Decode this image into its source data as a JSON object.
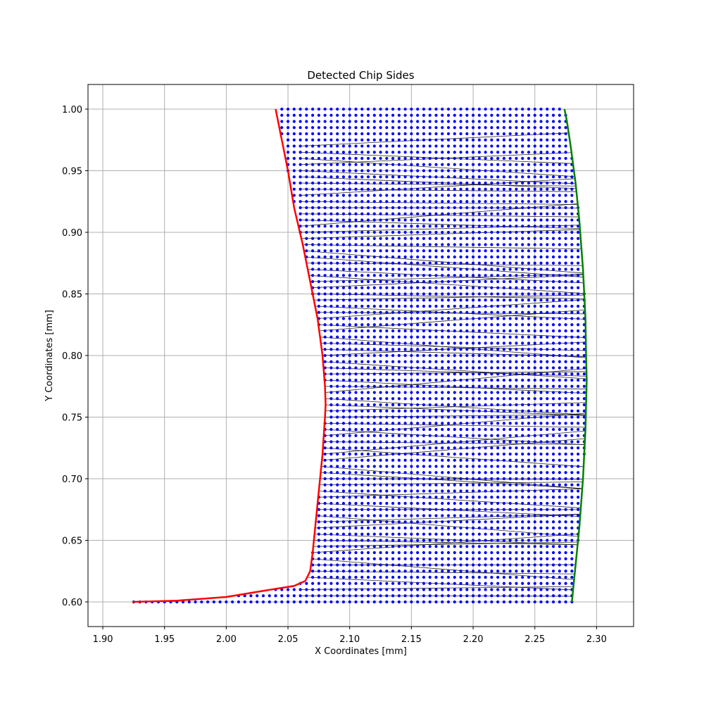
{
  "chart_data": {
    "type": "scatter",
    "title": "Detected Chip Sides",
    "xlabel": "X Coordinates [mm]",
    "ylabel": "Y Coordinates [mm]",
    "xlim": [
      1.888,
      2.33
    ],
    "ylim": [
      0.58,
      1.02
    ],
    "x_ticks": [
      "1.90",
      "1.95",
      "2.00",
      "2.05",
      "2.10",
      "2.15",
      "2.20",
      "2.25",
      "2.30"
    ],
    "y_ticks": [
      "0.60",
      "0.65",
      "0.70",
      "0.75",
      "0.80",
      "0.85",
      "0.90",
      "0.95",
      "1.00"
    ],
    "grid": true,
    "grid_step": {
      "x": 0.005,
      "y": 0.005
    },
    "colors": {
      "grid_points": "#0000ff",
      "left_side": "#ff0000",
      "right_side": "#008000",
      "connectors": "#000000",
      "grid_lines": "#b0b0b0"
    },
    "series": [
      {
        "kind": "grid-points",
        "description_points": "blue dots fill region between left and right sides",
        "y_range": [
          0.6,
          1.0
        ]
      },
      {
        "kind": "left-side",
        "points": [
          [
            1.924,
            0.6
          ],
          [
            1.96,
            0.601
          ],
          [
            2.0,
            0.604
          ],
          [
            2.03,
            0.609
          ],
          [
            2.055,
            0.613
          ],
          [
            2.064,
            0.617
          ],
          [
            2.068,
            0.625
          ],
          [
            2.07,
            0.64
          ],
          [
            2.072,
            0.66
          ],
          [
            2.075,
            0.69
          ],
          [
            2.078,
            0.72
          ],
          [
            2.08,
            0.75
          ],
          [
            2.0805,
            0.76
          ],
          [
            2.08,
            0.775
          ],
          [
            2.078,
            0.8
          ],
          [
            2.074,
            0.83
          ],
          [
            2.068,
            0.86
          ],
          [
            2.062,
            0.89
          ],
          [
            2.055,
            0.92
          ],
          [
            2.05,
            0.95
          ],
          [
            2.045,
            0.975
          ],
          [
            2.04,
            1.0
          ]
        ]
      },
      {
        "kind": "right-side",
        "points": [
          [
            2.28,
            0.6
          ],
          [
            2.283,
            0.63
          ],
          [
            2.286,
            0.66
          ],
          [
            2.289,
            0.7
          ],
          [
            2.291,
            0.74
          ],
          [
            2.292,
            0.78
          ],
          [
            2.2915,
            0.8
          ],
          [
            2.291,
            0.83
          ],
          [
            2.289,
            0.87
          ],
          [
            2.286,
            0.91
          ],
          [
            2.283,
            0.94
          ],
          [
            2.279,
            0.97
          ],
          [
            2.276,
            0.99
          ],
          [
            2.274,
            1.0
          ]
        ]
      }
    ]
  }
}
